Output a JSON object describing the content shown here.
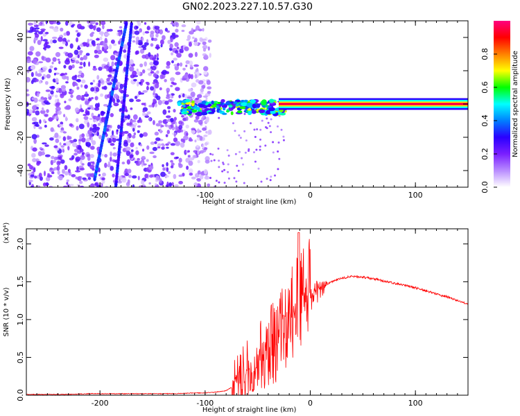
{
  "title": "GN02.2023.227.10.57.G30",
  "chart_data": [
    {
      "type": "heatmap",
      "xlabel": "Height of straight line (km)",
      "ylabel": "Frequency (Hz)",
      "xlim": [
        -270,
        150
      ],
      "ylim": [
        -50,
        50
      ],
      "xticks": [
        -200,
        -100,
        0,
        100
      ],
      "xtick_labels": [
        "-200",
        "-100",
        "0",
        "100"
      ],
      "yticks": [
        -40,
        -20,
        0,
        20,
        40
      ],
      "ytick_labels": [
        "-40",
        "-20",
        "0",
        "20",
        "40"
      ],
      "colorbar": {
        "label": "Normalized spectral amplitude",
        "range": [
          0,
          1
        ],
        "ticks": [
          0.0,
          0.2,
          0.4,
          0.6,
          0.8
        ],
        "tick_labels": [
          "0.0",
          "0.2",
          "0.4",
          "0.6",
          "0.8"
        ],
        "colormap": [
          "#ffffff",
          "#b98cff",
          "#7a1fff",
          "#2a00ff",
          "#0080ff",
          "#00ffff",
          "#00ff00",
          "#ffff00",
          "#ff8000",
          "#ff0000",
          "#ff0080"
        ]
      },
      "features": [
        {
          "name": "steady signal band",
          "x": [
            -30,
            150
          ],
          "y_center": 0,
          "y_halfwidth": 2.5,
          "amplitude": 0.95
        },
        {
          "name": "fragmented signal",
          "x": [
            -125,
            -25
          ],
          "y_center": -2,
          "amplitude": 0.5
        },
        {
          "name": "diagonal streak 1",
          "x": [
            -205,
            -175
          ],
          "y": [
            -45,
            48
          ],
          "amplitude": 0.3
        },
        {
          "name": "diagonal streak 2",
          "x": [
            -185,
            -170
          ],
          "y": [
            -50,
            48
          ],
          "amplitude": 0.25
        },
        {
          "name": "noise region",
          "x": [
            -270,
            -95
          ],
          "y": [
            -50,
            50
          ],
          "amplitude": 0.1
        }
      ]
    },
    {
      "type": "line",
      "xlabel": "Height of straight line (km)",
      "ylabel": "SNR (10 * v/v)",
      "y_multiplier": "(x10⁴)",
      "xlim": [
        -270,
        150
      ],
      "ylim": [
        0,
        2.2
      ],
      "xticks": [
        -200,
        -100,
        0,
        100
      ],
      "xtick_labels": [
        "-200",
        "-100",
        "0",
        "100"
      ],
      "yticks": [
        0.0,
        0.5,
        1.0,
        1.5,
        2.0
      ],
      "ytick_labels": [
        "0.0",
        "0.5",
        "1.0",
        "1.5",
        "2.0"
      ],
      "color": "#ff0000",
      "series": [
        {
          "x": [
            -270,
            -250,
            -230,
            -210,
            -190,
            -170,
            -150,
            -130,
            -110,
            -100,
            -90,
            -80,
            -70,
            -60,
            -50,
            -40,
            -30,
            -20,
            -10,
            -5,
            0,
            10,
            20,
            30,
            40,
            50,
            60,
            70,
            80,
            90,
            100,
            110,
            120,
            130,
            140,
            150
          ],
          "values": [
            0.01,
            0.01,
            0.01,
            0.02,
            0.02,
            0.02,
            0.02,
            0.02,
            0.03,
            0.03,
            0.04,
            0.06,
            0.15,
            0.3,
            0.45,
            0.6,
            0.8,
            1.0,
            1.2,
            1.3,
            1.35,
            1.4,
            1.5,
            1.55,
            1.57,
            1.56,
            1.54,
            1.51,
            1.48,
            1.45,
            1.42,
            1.38,
            1.34,
            1.3,
            1.25,
            1.2
          ]
        }
      ]
    }
  ]
}
